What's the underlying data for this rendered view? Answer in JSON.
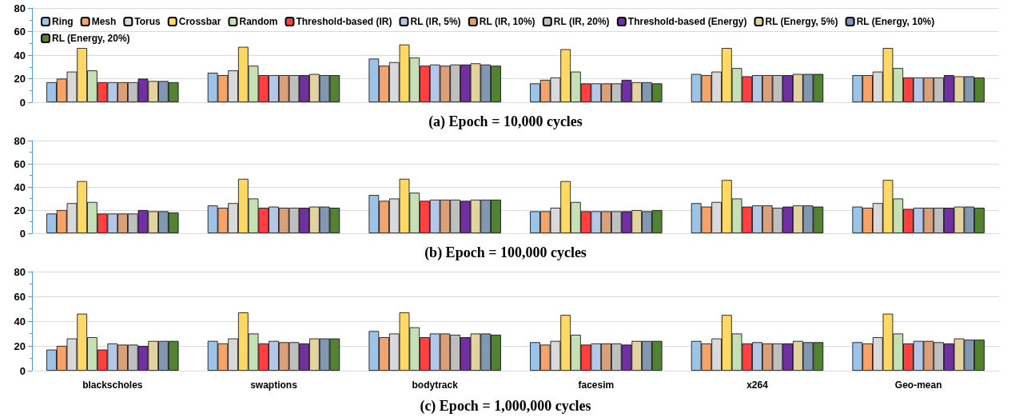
{
  "chart_data": [
    {
      "type": "bar",
      "title": "(a) Epoch = 10,000 cycles",
      "categories": [
        null,
        null,
        null,
        null,
        null,
        null
      ],
      "ylim": [
        0,
        80
      ],
      "yticks": [
        0,
        20,
        40,
        60,
        80
      ],
      "grid": "y",
      "legend": "top",
      "tick_labels": "y",
      "series": [
        {
          "name": "Ring",
          "color": "#9dc3e6",
          "values": [
            17,
            25,
            37,
            16,
            24,
            23
          ]
        },
        {
          "name": "Mesh",
          "color": "#f4a46a",
          "values": [
            20,
            23,
            31,
            19,
            23,
            23
          ]
        },
        {
          "name": "Torus",
          "color": "#d9d9d9",
          "values": [
            26,
            27,
            34,
            21,
            26,
            26
          ]
        },
        {
          "name": "Crossbar",
          "color": "#ffd966",
          "values": [
            46,
            47,
            49,
            45,
            46,
            46
          ]
        },
        {
          "name": "Random",
          "color": "#c5e0b4",
          "values": [
            27,
            31,
            38,
            26,
            29,
            29
          ]
        },
        {
          "name": "Threshold-based (IR)",
          "color": "#ff4040",
          "values": [
            17,
            23,
            31,
            16,
            22,
            21
          ]
        },
        {
          "name": "RL (IR, 5%)",
          "color": "#b4c7e7",
          "values": [
            17,
            23,
            32,
            16,
            23,
            21
          ]
        },
        {
          "name": "RL (IR, 10%)",
          "color": "#d9a07a",
          "values": [
            17,
            23,
            31,
            16,
            23,
            21
          ]
        },
        {
          "name": "RL (IR, 20%)",
          "color": "#bfbfbf",
          "values": [
            17,
            23,
            32,
            16,
            23,
            21
          ]
        },
        {
          "name": "Threshold-based (Energy)",
          "color": "#7030a0",
          "values": [
            20,
            23,
            32,
            19,
            23,
            23
          ]
        },
        {
          "name": "RL (Energy, 5%)",
          "color": "#e2d3a0",
          "values": [
            18,
            24,
            33,
            17,
            24,
            22
          ]
        },
        {
          "name": "RL (Energy, 10%)",
          "color": "#8497b0",
          "values": [
            18,
            23,
            32,
            17,
            24,
            22
          ]
        },
        {
          "name": "RL (Energy, 20%)",
          "color": "#548235",
          "values": [
            17,
            23,
            31,
            16,
            24,
            21
          ]
        }
      ]
    },
    {
      "type": "bar",
      "title": "(b) Epoch = 100,000 cycles",
      "categories": [
        null,
        null,
        null,
        null,
        null,
        null
      ],
      "ylim": [
        0,
        80
      ],
      "yticks": [
        0,
        20,
        40,
        60,
        80
      ],
      "grid": "y",
      "tick_labels": "y",
      "series": [
        {
          "color": "#9dc3e6",
          "values": [
            17,
            24,
            33,
            19,
            26,
            23
          ]
        },
        {
          "color": "#f4a46a",
          "values": [
            20,
            22,
            28,
            19,
            23,
            22
          ]
        },
        {
          "color": "#d9d9d9",
          "values": [
            26,
            26,
            30,
            22,
            27,
            26
          ]
        },
        {
          "color": "#ffd966",
          "values": [
            45,
            47,
            47,
            45,
            46,
            46
          ]
        },
        {
          "color": "#c5e0b4",
          "values": [
            27,
            30,
            35,
            27,
            30,
            30
          ]
        },
        {
          "color": "#ff4040",
          "values": [
            17,
            22,
            28,
            19,
            23,
            21
          ]
        },
        {
          "color": "#b4c7e7",
          "values": [
            17,
            23,
            29,
            19,
            24,
            22
          ]
        },
        {
          "color": "#d9a07a",
          "values": [
            17,
            22,
            29,
            19,
            24,
            22
          ]
        },
        {
          "color": "#bfbfbf",
          "values": [
            17,
            22,
            29,
            19,
            22,
            22
          ]
        },
        {
          "color": "#7030a0",
          "values": [
            20,
            22,
            28,
            19,
            23,
            22
          ]
        },
        {
          "color": "#e2d3a0",
          "values": [
            19,
            23,
            29,
            20,
            24,
            23
          ]
        },
        {
          "color": "#8497b0",
          "values": [
            19,
            23,
            29,
            19,
            24,
            23
          ]
        },
        {
          "color": "#548235",
          "values": [
            18,
            22,
            29,
            20,
            23,
            22
          ]
        }
      ]
    },
    {
      "type": "bar",
      "title": "(c) Epoch = 1,000,000 cycles",
      "categories": [
        "blackscholes",
        "swaptions",
        "bodytrack",
        "facesim",
        "x264",
        "Geo-mean"
      ],
      "ylim": [
        0,
        80
      ],
      "yticks": [
        0,
        20,
        40,
        60,
        80
      ],
      "grid": "y",
      "series": [
        {
          "color": "#9dc3e6",
          "values": [
            17,
            24,
            32,
            23,
            24,
            23
          ]
        },
        {
          "color": "#f4a46a",
          "values": [
            20,
            22,
            27,
            21,
            22,
            22
          ]
        },
        {
          "color": "#d9d9d9",
          "values": [
            26,
            26,
            30,
            24,
            26,
            27
          ]
        },
        {
          "color": "#ffd966",
          "values": [
            46,
            47,
            47,
            45,
            45,
            46
          ]
        },
        {
          "color": "#c5e0b4",
          "values": [
            27,
            30,
            35,
            29,
            30,
            30
          ]
        },
        {
          "color": "#ff4040",
          "values": [
            17,
            22,
            27,
            21,
            22,
            22
          ]
        },
        {
          "color": "#b4c7e7",
          "values": [
            22,
            24,
            30,
            22,
            23,
            24
          ]
        },
        {
          "color": "#d9a07a",
          "values": [
            21,
            23,
            30,
            22,
            22,
            24
          ]
        },
        {
          "color": "#bfbfbf",
          "values": [
            21,
            23,
            29,
            22,
            22,
            23
          ]
        },
        {
          "color": "#7030a0",
          "values": [
            20,
            22,
            27,
            21,
            22,
            22
          ]
        },
        {
          "color": "#e2d3a0",
          "values": [
            24,
            26,
            30,
            24,
            24,
            26
          ]
        },
        {
          "color": "#8497b0",
          "values": [
            24,
            26,
            30,
            24,
            23,
            25
          ]
        },
        {
          "color": "#548235",
          "values": [
            24,
            26,
            29,
            24,
            23,
            25
          ]
        }
      ]
    }
  ]
}
